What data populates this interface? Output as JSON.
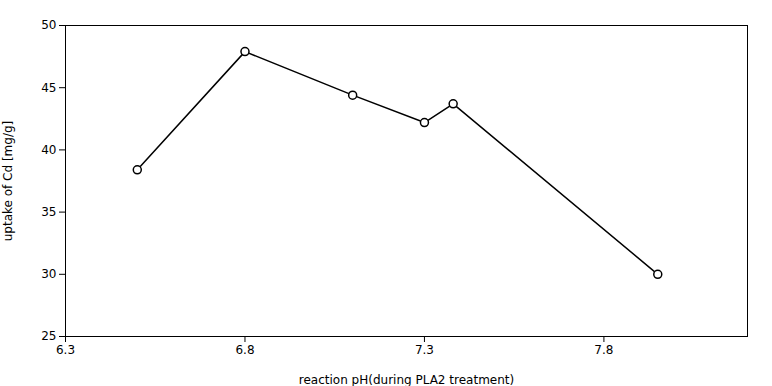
{
  "chart_data": {
    "type": "line",
    "x": [
      6.5,
      6.8,
      7.1,
      7.3,
      7.38,
      7.95
    ],
    "values": [
      38.4,
      47.9,
      44.4,
      42.2,
      43.7,
      30.0
    ],
    "xlabel": "reaction pH(during PLA2 treatment)",
    "ylabel": "uptake of Cd [mg/g]",
    "xlim": [
      6.3,
      8.2
    ],
    "ylim": [
      25,
      50
    ],
    "xticks": [
      6.3,
      6.8,
      7.3,
      7.8
    ],
    "yticks": [
      25,
      30,
      35,
      40,
      45,
      50
    ],
    "color": "#000000",
    "marker": "circle",
    "grid": false
  }
}
